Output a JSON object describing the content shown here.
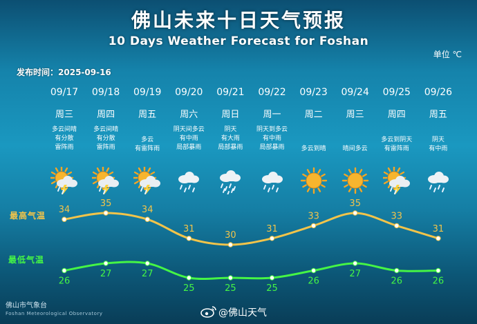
{
  "title_cn": "佛山未来十日天气预报",
  "title_en": "10 Days Weather Forecast for Foshan",
  "unit": "单位 ℃",
  "issue_label": "发布时间：",
  "issue_date": "2025-09-16",
  "legend_high": "最高气温",
  "legend_low": "最低气温",
  "footer_cn": "佛山市气象台",
  "footer_en": "Foshan Meteorological Observatory",
  "weibo_handle": "@佛山天气",
  "colors": {
    "high_line": "#f2c44a",
    "low_line": "#45f545"
  },
  "days": [
    {
      "date": "09/17",
      "weekday": "周三",
      "desc": [
        "多云间晴",
        "有分散",
        "雷阵雨"
      ],
      "icon": "sun-cloud-thunder-icon"
    },
    {
      "date": "09/18",
      "weekday": "周四",
      "desc": [
        "多云间晴",
        "有分散",
        "雷阵雨"
      ],
      "icon": "sun-cloud-thunder-icon"
    },
    {
      "date": "09/19",
      "weekday": "周五",
      "desc": [
        "多云",
        "有雷阵雨"
      ],
      "icon": "sun-cloud-thunder-icon"
    },
    {
      "date": "09/20",
      "weekday": "周六",
      "desc": [
        "阴天间多云",
        "有中雨",
        "局部暴雨"
      ],
      "icon": "cloud-rain-icon"
    },
    {
      "date": "09/21",
      "weekday": "周日",
      "desc": [
        "阴天",
        "有大雨",
        "局部暴雨"
      ],
      "icon": "cloud-heavy-rain-icon"
    },
    {
      "date": "09/22",
      "weekday": "周一",
      "desc": [
        "阴天到多云",
        "有中雨",
        "局部暴雨"
      ],
      "icon": "cloud-rain-icon"
    },
    {
      "date": "09/23",
      "weekday": "周二",
      "desc": [
        "多云到晴"
      ],
      "icon": "sun-icon"
    },
    {
      "date": "09/24",
      "weekday": "周三",
      "desc": [
        "晴间多云"
      ],
      "icon": "sun-icon"
    },
    {
      "date": "09/25",
      "weekday": "周四",
      "desc": [
        "多云到阴天",
        "有雷阵雨"
      ],
      "icon": "sun-cloud-thunder-icon"
    },
    {
      "date": "09/26",
      "weekday": "周五",
      "desc": [
        "阴天",
        "有中雨"
      ],
      "icon": "cloud-rain-icon"
    }
  ],
  "chart_data": {
    "type": "line",
    "categories": [
      "09/17",
      "09/18",
      "09/19",
      "09/20",
      "09/21",
      "09/22",
      "09/23",
      "09/24",
      "09/25",
      "09/26"
    ],
    "series": [
      {
        "name": "最高气温",
        "values": [
          34,
          35,
          34,
          31,
          30,
          31,
          33,
          35,
          33,
          31
        ]
      },
      {
        "name": "最低气温",
        "values": [
          26,
          27,
          27,
          25,
          25,
          25,
          26,
          27,
          26,
          26
        ]
      }
    ],
    "grid": false
  }
}
